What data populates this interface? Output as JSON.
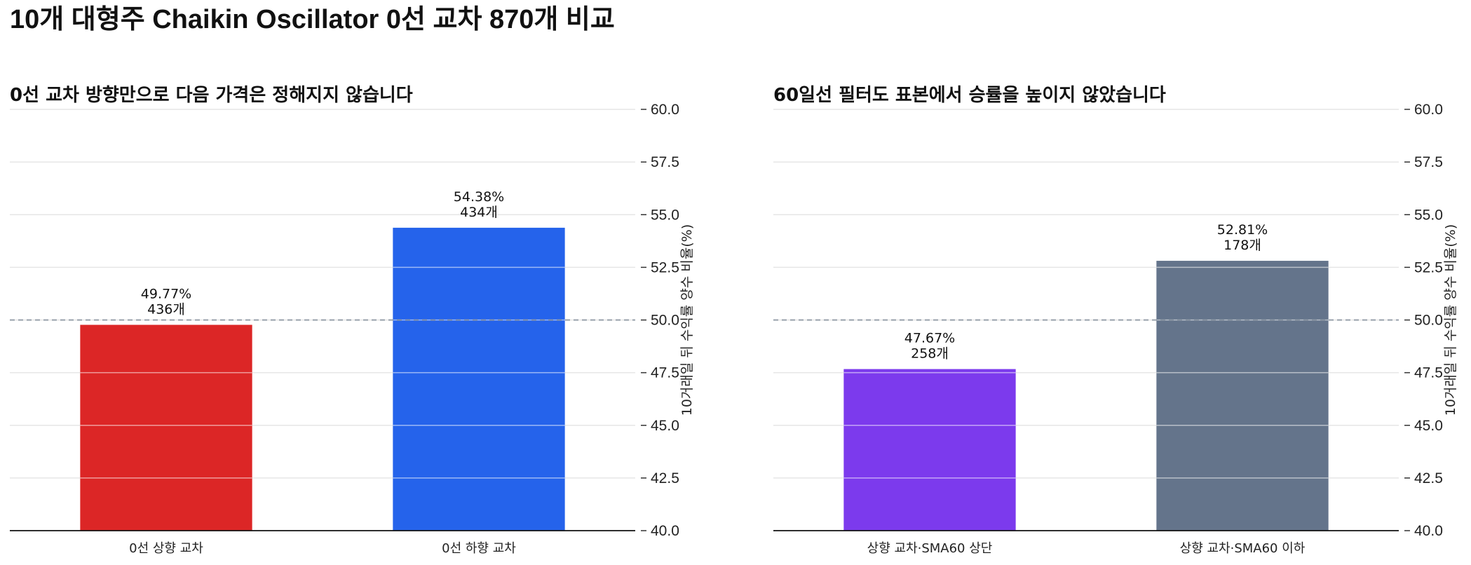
{
  "title": "10개 대형주 Chaikin Oscillator 0선 교차 870개 비교",
  "reference_line": 50.0,
  "chart_data": [
    {
      "type": "bar",
      "title": "0선 교차 방향만으로 다음 가격은 정해지지 않습니다",
      "ylabel": "10거래일 뒤 수익률 양수 비율(%)",
      "ylim": [
        40,
        60
      ],
      "yticks": [
        "40.0",
        "42.5",
        "45.0",
        "47.5",
        "50.0",
        "52.5",
        "55.0",
        "57.5",
        "60.0"
      ],
      "grid": true,
      "y_axis_position": "right",
      "categories": [
        "0선 상향 교차",
        "0선 하향 교차"
      ],
      "values": [
        49.77,
        54.38
      ],
      "value_labels": [
        "49.77%",
        "54.38%"
      ],
      "count_labels": [
        "436개",
        "434개"
      ],
      "colors": [
        "#dc2626",
        "#2563eb"
      ]
    },
    {
      "type": "bar",
      "title": "60일선 필터도 표본에서 승률을 높이지 않았습니다",
      "ylabel": "10거래일 뒤 수익률 양수 비율(%)",
      "ylim": [
        40,
        60
      ],
      "yticks": [
        "40.0",
        "42.5",
        "45.0",
        "47.5",
        "50.0",
        "52.5",
        "55.0",
        "57.5",
        "60.0"
      ],
      "grid": true,
      "y_axis_position": "right",
      "categories": [
        "상향 교차·SMA60 상단",
        "상향 교차·SMA60 이하"
      ],
      "values": [
        47.67,
        52.81
      ],
      "value_labels": [
        "47.67%",
        "52.81%"
      ],
      "count_labels": [
        "258개",
        "178개"
      ],
      "colors": [
        "#7c3aed",
        "#64748b"
      ]
    }
  ]
}
